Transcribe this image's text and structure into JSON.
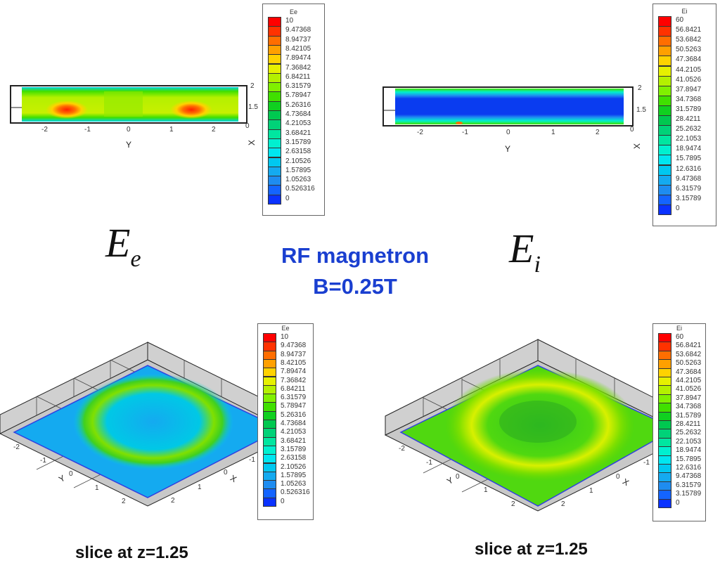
{
  "slide": {
    "symbol_left": {
      "base": "E",
      "sub": "e"
    },
    "symbol_right": {
      "base": "E",
      "sub": "i"
    },
    "title_line1": "RF magnetron",
    "title_line2": "B=0.25T",
    "caption_left": "slice at z=1.25",
    "caption_right": "slice at z=1.25"
  },
  "colormap": [
    "#0000ff",
    "#0a32ff",
    "#1464ff",
    "#1e8cf0",
    "#14aaf0",
    "#00c8f0",
    "#00e6f0",
    "#00f0d0",
    "#00e6a0",
    "#00d278",
    "#00c850",
    "#10d020",
    "#40e000",
    "#80f000",
    "#b4f000",
    "#e6f000",
    "#ffd200",
    "#ffa000",
    "#ff6e00",
    "#ff3200",
    "#ff0000"
  ],
  "chart_data": [
    {
      "type": "heatmap",
      "variable": "Ee",
      "xlabel": "Y",
      "ylabel": "X",
      "x_ticks": [
        "-2",
        "-1",
        "0",
        "1",
        "2"
      ],
      "y_ticks": [
        "2",
        "1.5",
        "0"
      ],
      "legend_title": "Ee",
      "levels": [
        "10",
        "9.47368",
        "8.94737",
        "8.42105",
        "7.89474",
        "7.36842",
        "6.84211",
        "6.31579",
        "5.78947",
        "5.26316",
        "4.73684",
        "4.21053",
        "3.68421",
        "3.15789",
        "2.63158",
        "2.10526",
        "1.57895",
        "1.05263",
        "0.526316",
        "0"
      ],
      "legend_placement": "right",
      "features": "yellow-green field (~6-7) with red maxima (~9-10) near Y=-1.4 and Y=1.4, cyan edges"
    },
    {
      "type": "heatmap",
      "variable": "Ei",
      "xlabel": "Y",
      "ylabel": "X",
      "x_ticks": [
        "-2",
        "-1",
        "0",
        "1",
        "2"
      ],
      "y_ticks": [
        "2",
        "1.5",
        "0"
      ],
      "legend_title": "Ei",
      "levels": [
        "60",
        "56.8421",
        "53.6842",
        "50.5263",
        "47.3684",
        "44.2105",
        "41.0526",
        "37.8947",
        "34.7368",
        "31.5789",
        "28.4211",
        "25.2632",
        "22.1053",
        "18.9474",
        "15.7895",
        "12.6316",
        "9.47368",
        "6.31579",
        "3.15789",
        "0"
      ],
      "legend_placement": "right",
      "features": "blue core (~0-3) with green/cyan edges (~20-40)"
    },
    {
      "type": "heatmap",
      "view": "3d-surface",
      "variable": "Ee",
      "xlabel": "X",
      "ylabel": "Y",
      "x_ticks": [
        "-1",
        "0",
        "1",
        "2"
      ],
      "y_ticks": [
        "-2",
        "-1",
        "0",
        "1",
        "2"
      ],
      "legend_title": "Ee",
      "levels": [
        "10",
        "9.47368",
        "8.94737",
        "8.42105",
        "7.89474",
        "7.36842",
        "6.84211",
        "6.31579",
        "5.78947",
        "5.26316",
        "4.73684",
        "4.21053",
        "3.68421",
        "3.15789",
        "2.63158",
        "2.10526",
        "1.57895",
        "1.05263",
        "0.526316",
        "0"
      ],
      "legend_placement": "right"
    },
    {
      "type": "heatmap",
      "view": "3d-surface",
      "variable": "Ei",
      "xlabel": "X",
      "ylabel": "Y",
      "x_ticks": [
        "-1",
        "0",
        "1",
        "2"
      ],
      "y_ticks": [
        "-2",
        "-1",
        "0",
        "1",
        "2"
      ],
      "legend_title": "Ei",
      "levels": [
        "60",
        "56.8421",
        "53.6842",
        "50.5263",
        "47.3684",
        "44.2105",
        "41.0526",
        "37.8947",
        "34.7368",
        "31.5789",
        "28.4211",
        "25.2632",
        "22.1053",
        "18.9474",
        "15.7895",
        "12.6316",
        "9.47368",
        "6.31579",
        "3.15789",
        "0"
      ],
      "legend_placement": "right"
    }
  ]
}
